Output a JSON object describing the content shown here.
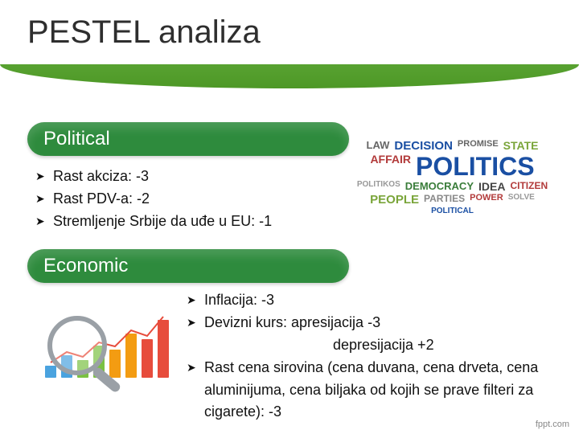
{
  "title": "PESTEL analiza",
  "footer": "fppt.com",
  "colors": {
    "pill_bg": "#2e8b3d",
    "banner_top": "#7fbf4d",
    "banner_bottom": "#4d9826",
    "text": "#111111"
  },
  "sections": {
    "political": {
      "label": "Political",
      "items": [
        "Rast akciza: -3",
        "Rast PDV-a: -2",
        "Stremljenje Srbije da uđe u EU: -1"
      ],
      "wordcloud": [
        {
          "t": "LAW",
          "c": "#666",
          "s": 13
        },
        {
          "t": "DECISION",
          "c": "#1a4fa3",
          "s": 15
        },
        {
          "t": "PROMISE",
          "c": "#666",
          "s": 11
        },
        {
          "t": "STATE",
          "c": "#7aa53a",
          "s": 14
        },
        {
          "t": "AFFAIR",
          "c": "#b23a3a",
          "s": 14
        },
        {
          "t": "POLITICS",
          "c": "#1a4fa3",
          "s": 32
        },
        {
          "t": "POLITIKOS",
          "c": "#999",
          "s": 10
        },
        {
          "t": "DEMOCRACY",
          "c": "#3a7d3a",
          "s": 13
        },
        {
          "t": "IDEA",
          "c": "#444",
          "s": 14
        },
        {
          "t": "CITIZEN",
          "c": "#b23a3a",
          "s": 12
        },
        {
          "t": "PEOPLE",
          "c": "#7aa53a",
          "s": 15
        },
        {
          "t": "PARTIES",
          "c": "#888",
          "s": 12
        },
        {
          "t": "POWER",
          "c": "#b23a3a",
          "s": 11
        },
        {
          "t": "SOLVE",
          "c": "#999",
          "s": 10
        },
        {
          "t": "POLITICAL",
          "c": "#1a4fa3",
          "s": 10
        }
      ]
    },
    "economic": {
      "label": "Economic",
      "items": [
        "Inflacija: -3",
        "Devizni kurs:  apresijacija -3",
        "Rast cena sirovina (cena duvana, cena drveta, cena aluminijuma, cena biljaka od kojih se prave filteri za cigarete): -3"
      ],
      "sub_line": "depresijacija +2",
      "chart": {
        "type": "bar",
        "bars": [
          15,
          28,
          22,
          40,
          35,
          55,
          48,
          72
        ],
        "bar_colors": [
          "#4aa3df",
          "#4aa3df",
          "#7ac142",
          "#7ac142",
          "#f39c12",
          "#f39c12",
          "#e74c3c",
          "#e74c3c"
        ],
        "line_color": "#e74c3c",
        "magnifier_rim": "#9aa0a6",
        "background": "#ffffff"
      }
    }
  }
}
